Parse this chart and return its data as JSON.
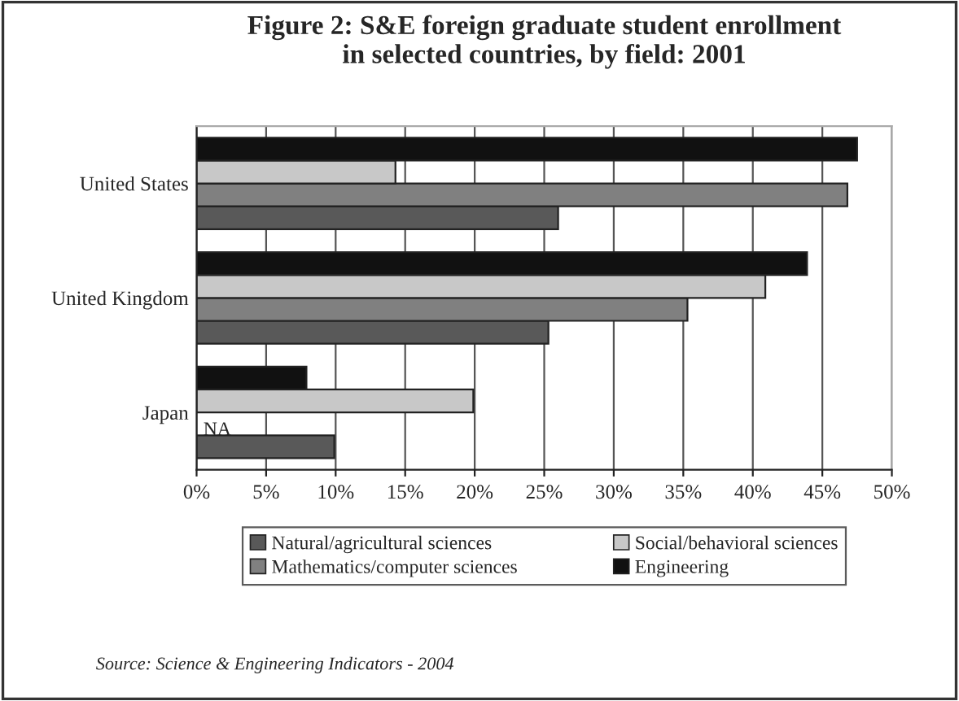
{
  "chart_data": {
    "type": "bar",
    "orientation": "horizontal",
    "title": "Figure 2: S&E foreign graduate student enrollment\nin selected countries, by field: 2001",
    "categories": [
      "United States",
      "United Kingdom",
      "Japan"
    ],
    "series": [
      {
        "name": "Natural/agricultural sciences",
        "color": "#595959",
        "values": [
          26.0,
          25.3,
          9.9
        ]
      },
      {
        "name": "Mathematics/computer sciences",
        "color": "#808080",
        "values": [
          46.8,
          35.3,
          null
        ]
      },
      {
        "name": "Social/behavioral sciences",
        "color": "#c8c8c8",
        "values": [
          14.3,
          40.9,
          19.9
        ]
      },
      {
        "name": "Engineering",
        "color": "#111111",
        "values": [
          47.5,
          43.9,
          7.9
        ]
      }
    ],
    "xlim": [
      0,
      50
    ],
    "xticks": [
      {
        "value": 0,
        "label": "0%"
      },
      {
        "value": 5,
        "label": "5%"
      },
      {
        "value": 10,
        "label": "10%"
      },
      {
        "value": 15,
        "label": "15%"
      },
      {
        "value": 20,
        "label": "20%"
      },
      {
        "value": 25,
        "label": "25%"
      },
      {
        "value": 30,
        "label": "30%"
      },
      {
        "value": 35,
        "label": "35%"
      },
      {
        "value": 40,
        "label": "40%"
      },
      {
        "value": 45,
        "label": "45%"
      },
      {
        "value": 50,
        "label": "50%"
      }
    ],
    "grid": "x",
    "legend": "bottom",
    "annotations": [
      {
        "text": "NA",
        "x": 0,
        "y": "Japan"
      },
      "Source: Science & Engineering Indicators - 2004"
    ]
  }
}
